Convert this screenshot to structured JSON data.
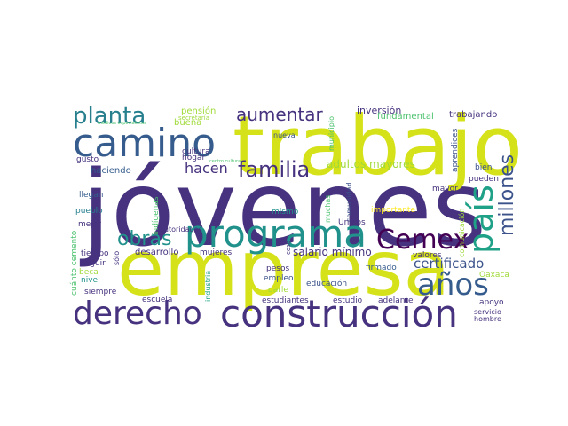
{
  "colors": {
    "purple": "#46327e",
    "dark": "#440154",
    "indigo": "#3b528b",
    "blue": "#365c8d",
    "teal": "#277f8e",
    "sea": "#21918c",
    "green": "#1fa187",
    "mint": "#4ac16d",
    "lime": "#a0da39",
    "yellow": "#d5e21a",
    "sun": "#fde725"
  },
  "words": [
    "jóvenes",
    "trabajo",
    "empresa",
    "construcción",
    "programa",
    "camino",
    "derecho",
    "país",
    "Cemex",
    "años",
    "planta",
    "familia",
    "millones",
    "obras",
    "aumentar",
    "hacen",
    "certificado",
    "adultos mayores",
    "salario mínimo",
    "inversión",
    "trabajando",
    "fundamental",
    "pensión",
    "secretaría",
    "buena",
    "gusto",
    "haciendo",
    "hogar",
    "cultura",
    "llegan",
    "pueblo",
    "mejor",
    "indígenas",
    "autoridades",
    "desarrollo",
    "mujeres",
    "mismo",
    "muchas",
    "comunidad",
    "importante",
    "Unidos",
    "tiempo",
    "beca",
    "nivel",
    "siempre",
    "escuela",
    "cuánto cemento",
    "seguir",
    "sólo",
    "industria",
    "pesos",
    "empleo",
    "darle",
    "educación",
    "estudiantes",
    "estudio",
    "adelante",
    "firmado",
    "valores",
    "municipio",
    "nueva",
    "mayor",
    "aprendices",
    "comunicación",
    "bien",
    "pueden",
    "apoyo",
    "Oaxaca",
    "servicio",
    "hombre",
    "cosa",
    "médicos especialistas",
    "centro cultural"
  ]
}
